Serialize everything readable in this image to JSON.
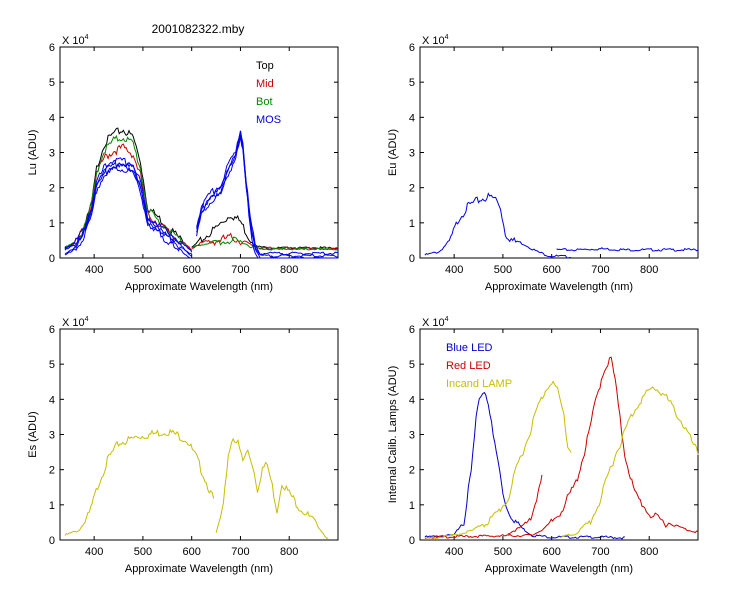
{
  "figure": {
    "title": "2001082322.mby"
  },
  "chart_data": [
    {
      "type": "line",
      "id": "lu",
      "xlabel": "Approximate Wavelength (nm)",
      "ylabel": "Lu (ADU)",
      "exponent_label": "X 10",
      "exponent_power": "4",
      "xlim": [
        330,
        900
      ],
      "ylim": [
        0,
        6
      ],
      "xticks": [
        400,
        500,
        600,
        700,
        800
      ],
      "yticks": [
        0,
        1,
        2,
        3,
        4,
        5,
        6
      ],
      "legend_position": "top-right",
      "series": [
        {
          "name": "Top",
          "color": "#000000",
          "points": [
            [
              340,
              0.3
            ],
            [
              360,
              0.45
            ],
            [
              380,
              0.9
            ],
            [
              395,
              1.6
            ],
            [
              405,
              2.6
            ],
            [
              420,
              3.3
            ],
            [
              440,
              3.6
            ],
            [
              460,
              3.7
            ],
            [
              480,
              3.5
            ],
            [
              495,
              2.8
            ],
            [
              510,
              1.5
            ],
            [
              540,
              1.1
            ],
            [
              570,
              0.7
            ],
            [
              595,
              0.3
            ],
            [
              600,
              0.25
            ]
          ],
          "points2": [
            [
              600,
              0.3
            ],
            [
              615,
              0.5
            ],
            [
              640,
              0.8
            ],
            [
              665,
              1.1
            ],
            [
              680,
              1.3
            ],
            [
              700,
              1.1
            ],
            [
              715,
              0.7
            ],
            [
              730,
              0.35
            ],
            [
              760,
              0.3
            ],
            [
              900,
              0.3
            ]
          ]
        },
        {
          "name": "Mid",
          "color": "#cc0000",
          "points": [
            [
              340,
              0.3
            ],
            [
              360,
              0.45
            ],
            [
              380,
              0.9
            ],
            [
              395,
              1.6
            ],
            [
              405,
              2.4
            ],
            [
              420,
              2.9
            ],
            [
              440,
              3.1
            ],
            [
              460,
              3.2
            ],
            [
              480,
              3.0
            ],
            [
              495,
              2.4
            ],
            [
              510,
              1.3
            ],
            [
              540,
              0.95
            ],
            [
              570,
              0.6
            ],
            [
              595,
              0.3
            ],
            [
              600,
              0.25
            ]
          ],
          "points2": [
            [
              600,
              0.3
            ],
            [
              620,
              0.45
            ],
            [
              650,
              0.55
            ],
            [
              680,
              0.65
            ],
            [
              700,
              0.55
            ],
            [
              720,
              0.4
            ],
            [
              740,
              0.3
            ],
            [
              900,
              0.28
            ]
          ]
        },
        {
          "name": "Bot",
          "color": "#008800",
          "points": [
            [
              340,
              0.3
            ],
            [
              360,
              0.45
            ],
            [
              380,
              0.9
            ],
            [
              395,
              1.6
            ],
            [
              405,
              2.5
            ],
            [
              420,
              3.1
            ],
            [
              440,
              3.4
            ],
            [
              460,
              3.5
            ],
            [
              480,
              3.3
            ],
            [
              495,
              2.6
            ],
            [
              510,
              1.4
            ],
            [
              540,
              1.0
            ],
            [
              570,
              0.65
            ],
            [
              595,
              0.3
            ],
            [
              600,
              0.25
            ]
          ],
          "points2": [
            [
              600,
              0.3
            ],
            [
              620,
              0.4
            ],
            [
              650,
              0.5
            ],
            [
              680,
              0.55
            ],
            [
              700,
              0.5
            ],
            [
              720,
              0.35
            ],
            [
              740,
              0.28
            ],
            [
              900,
              0.27
            ]
          ]
        },
        {
          "name": "MOS",
          "color": "#0000ee",
          "points": [
            [
              340,
              0.3
            ],
            [
              360,
              0.45
            ],
            [
              380,
              0.9
            ],
            [
              395,
              1.5
            ],
            [
              405,
              2.2
            ],
            [
              420,
              2.6
            ],
            [
              440,
              2.8
            ],
            [
              460,
              2.8
            ],
            [
              480,
              2.7
            ],
            [
              495,
              2.2
            ],
            [
              510,
              1.2
            ],
            [
              540,
              0.9
            ],
            [
              570,
              0.55
            ],
            [
              595,
              0.25
            ],
            [
              600,
              0.2
            ]
          ],
          "points2": [
            [
              610,
              0.9
            ],
            [
              620,
              1.5
            ],
            [
              640,
              1.9
            ],
            [
              660,
              2.1
            ],
            [
              675,
              2.7
            ],
            [
              690,
              3.1
            ],
            [
              700,
              3.7
            ],
            [
              705,
              3.3
            ],
            [
              712,
              2.2
            ],
            [
              720,
              1.2
            ],
            [
              730,
              0.4
            ],
            [
              740,
              0.15
            ],
            [
              900,
              0.15
            ]
          ]
        }
      ]
    },
    {
      "type": "line",
      "id": "eu",
      "xlabel": "Approximate Wavelength (nm)",
      "ylabel": "Eu  (ADU)",
      "exponent_label": "X 10",
      "exponent_power": "4",
      "xlim": [
        330,
        900
      ],
      "ylim": [
        0,
        6
      ],
      "xticks": [
        400,
        500,
        600,
        700,
        800
      ],
      "yticks": [
        0,
        1,
        2,
        3,
        4,
        5,
        6
      ],
      "series": [
        {
          "color": "#0000ee",
          "points": [
            [
              340,
              0.1
            ],
            [
              370,
              0.2
            ],
            [
              390,
              0.5
            ],
            [
              410,
              1.2
            ],
            [
              430,
              1.55
            ],
            [
              450,
              1.7
            ],
            [
              470,
              1.8
            ],
            [
              485,
              1.75
            ],
            [
              495,
              1.5
            ],
            [
              505,
              0.75
            ],
            [
              520,
              0.55
            ],
            [
              545,
              0.4
            ],
            [
              570,
              0.2
            ],
            [
              595,
              0.08
            ],
            [
              640,
              0.05
            ]
          ],
          "points2": [
            [
              610,
              0.25
            ],
            [
              650,
              0.25
            ],
            [
              700,
              0.28
            ],
            [
              750,
              0.25
            ],
            [
              900,
              0.25
            ]
          ]
        }
      ]
    },
    {
      "type": "line",
      "id": "es",
      "xlabel": "Approximate Wavelength (nm)",
      "ylabel": "Es  (ADU)",
      "exponent_label": "X 10",
      "exponent_power": "4",
      "xlim": [
        330,
        900
      ],
      "ylim": [
        0,
        6
      ],
      "xticks": [
        400,
        500,
        600,
        700,
        800
      ],
      "yticks": [
        0,
        1,
        2,
        3,
        4,
        5,
        6
      ],
      "series": [
        {
          "color": "#c8be00",
          "points": [
            [
              340,
              0.15
            ],
            [
              370,
              0.3
            ],
            [
              390,
              0.8
            ],
            [
              410,
              1.7
            ],
            [
              430,
              2.4
            ],
            [
              450,
              2.8
            ],
            [
              470,
              2.9
            ],
            [
              490,
              3.0
            ],
            [
              510,
              3.05
            ],
            [
              530,
              3.1
            ],
            [
              550,
              3.15
            ],
            [
              570,
              3.05
            ],
            [
              590,
              2.9
            ],
            [
              610,
              2.4
            ],
            [
              630,
              1.7
            ],
            [
              645,
              1.2
            ]
          ],
          "points2": [
            [
              650,
              0.2
            ],
            [
              665,
              1.0
            ],
            [
              675,
              2.5
            ],
            [
              685,
              3.0
            ],
            [
              695,
              2.8
            ],
            [
              705,
              2.3
            ],
            [
              715,
              2.6
            ],
            [
              725,
              2.2
            ],
            [
              735,
              1.5
            ],
            [
              745,
              2.1
            ],
            [
              755,
              2.2
            ],
            [
              765,
              1.6
            ],
            [
              775,
              0.9
            ],
            [
              785,
              1.7
            ],
            [
              800,
              1.4
            ],
            [
              820,
              1.0
            ],
            [
              850,
              0.6
            ],
            [
              870,
              0.2
            ],
            [
              880,
              0.05
            ]
          ]
        }
      ]
    },
    {
      "type": "line",
      "id": "lamps",
      "xlabel": "Approximate Wavelength (nm)",
      "ylabel": "Internal Calib. Lamps (ADU)",
      "exponent_label": "X 10",
      "exponent_power": "4",
      "xlim": [
        330,
        900
      ],
      "ylim": [
        0,
        6
      ],
      "xticks": [
        400,
        500,
        600,
        700,
        800
      ],
      "yticks": [
        0,
        1,
        2,
        3,
        4,
        5,
        6
      ],
      "legend_position": "top-left",
      "series": [
        {
          "name": "Blue LED",
          "color": "#0000cc",
          "points": [
            [
              340,
              0.1
            ],
            [
              400,
              0.15
            ],
            [
              420,
              0.6
            ],
            [
              435,
              2.0
            ],
            [
              445,
              3.5
            ],
            [
              455,
              4.2
            ],
            [
              462,
              4.3
            ],
            [
              470,
              4.0
            ],
            [
              480,
              3.0
            ],
            [
              490,
              2.3
            ],
            [
              500,
              1.4
            ],
            [
              510,
              0.9
            ],
            [
              520,
              0.7
            ],
            [
              540,
              0.35
            ],
            [
              560,
              0.15
            ],
            [
              600,
              0.1
            ],
            [
              700,
              0.1
            ],
            [
              750,
              0.08
            ]
          ]
        },
        {
          "name": "Red LED",
          "color": "#cc0000",
          "points": [
            [
              340,
              0.1
            ],
            [
              560,
              0.15
            ],
            [
              590,
              0.4
            ],
            [
              620,
              0.9
            ],
            [
              650,
              1.7
            ],
            [
              670,
              2.7
            ],
            [
              690,
              4.0
            ],
            [
              705,
              4.8
            ],
            [
              715,
              5.1
            ],
            [
              722,
              5.2
            ],
            [
              730,
              4.6
            ],
            [
              740,
              3.5
            ],
            [
              750,
              2.5
            ],
            [
              770,
              1.4
            ],
            [
              800,
              0.8
            ],
            [
              840,
              0.5
            ],
            [
              880,
              0.3
            ],
            [
              900,
              0.25
            ]
          ],
          "points2": [
            [
              510,
              0.2
            ],
            [
              540,
              0.4
            ],
            [
              560,
              0.8
            ],
            [
              575,
              1.5
            ],
            [
              580,
              1.9
            ]
          ]
        },
        {
          "name": "Incand LAMP",
          "color": "#c8be00",
          "points": [
            [
              340,
              0.05
            ],
            [
              400,
              0.15
            ],
            [
              440,
              0.3
            ],
            [
              480,
              0.7
            ],
            [
              510,
              1.2
            ],
            [
              530,
              2.2
            ],
            [
              550,
              2.9
            ],
            [
              570,
              3.8
            ],
            [
              590,
              4.4
            ],
            [
              600,
              4.6
            ],
            [
              612,
              4.3
            ],
            [
              625,
              3.6
            ],
            [
              633,
              2.7
            ],
            [
              640,
              2.6
            ]
          ],
          "points2": [
            [
              620,
              0.1
            ],
            [
              650,
              0.2
            ],
            [
              680,
              0.6
            ],
            [
              700,
              1.2
            ],
            [
              720,
              2.1
            ],
            [
              740,
              2.8
            ],
            [
              760,
              3.5
            ],
            [
              780,
              4.0
            ],
            [
              800,
              4.3
            ],
            [
              810,
              4.4
            ],
            [
              830,
              4.2
            ],
            [
              850,
              3.8
            ],
            [
              875,
              3.2
            ],
            [
              900,
              2.5
            ]
          ]
        }
      ]
    }
  ]
}
